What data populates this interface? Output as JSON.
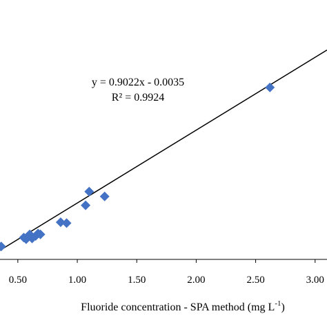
{
  "chart_data": {
    "type": "scatter",
    "xlabel": "Fluoride concentration - SPA method (mg L",
    "xlabel_sup": "-1",
    "xlabel_suffix": ")",
    "xlim": [
      0.35,
      3.1
    ],
    "ylim": [
      0.2,
      2.9
    ],
    "x_ticks": [
      0.5,
      1.0,
      1.5,
      2.0,
      2.5,
      3.0
    ],
    "x_tick_labels": [
      "0.50",
      "1.00",
      "1.50",
      "2.00",
      "2.50",
      "3.00"
    ],
    "points": [
      {
        "x": 0.36,
        "y": 0.36
      },
      {
        "x": 0.55,
        "y": 0.47
      },
      {
        "x": 0.57,
        "y": 0.45
      },
      {
        "x": 0.59,
        "y": 0.49
      },
      {
        "x": 0.6,
        "y": 0.51
      },
      {
        "x": 0.62,
        "y": 0.46
      },
      {
        "x": 0.65,
        "y": 0.49
      },
      {
        "x": 0.67,
        "y": 0.52
      },
      {
        "x": 0.69,
        "y": 0.51
      },
      {
        "x": 0.86,
        "y": 0.66
      },
      {
        "x": 0.91,
        "y": 0.65
      },
      {
        "x": 1.07,
        "y": 0.87
      },
      {
        "x": 1.1,
        "y": 1.04
      },
      {
        "x": 1.23,
        "y": 0.98
      },
      {
        "x": 2.62,
        "y": 2.33
      }
    ],
    "trendline": {
      "slope": 0.9022,
      "intercept": -0.0035
    },
    "annotations": {
      "equation": "y = 0.9022x - 0.0035",
      "r2": "R² = 0.9924"
    },
    "colors": {
      "marker": "#4472C4",
      "trendline": "#000000",
      "axis": "#000000"
    },
    "grid": false,
    "marker_shape": "diamond"
  }
}
